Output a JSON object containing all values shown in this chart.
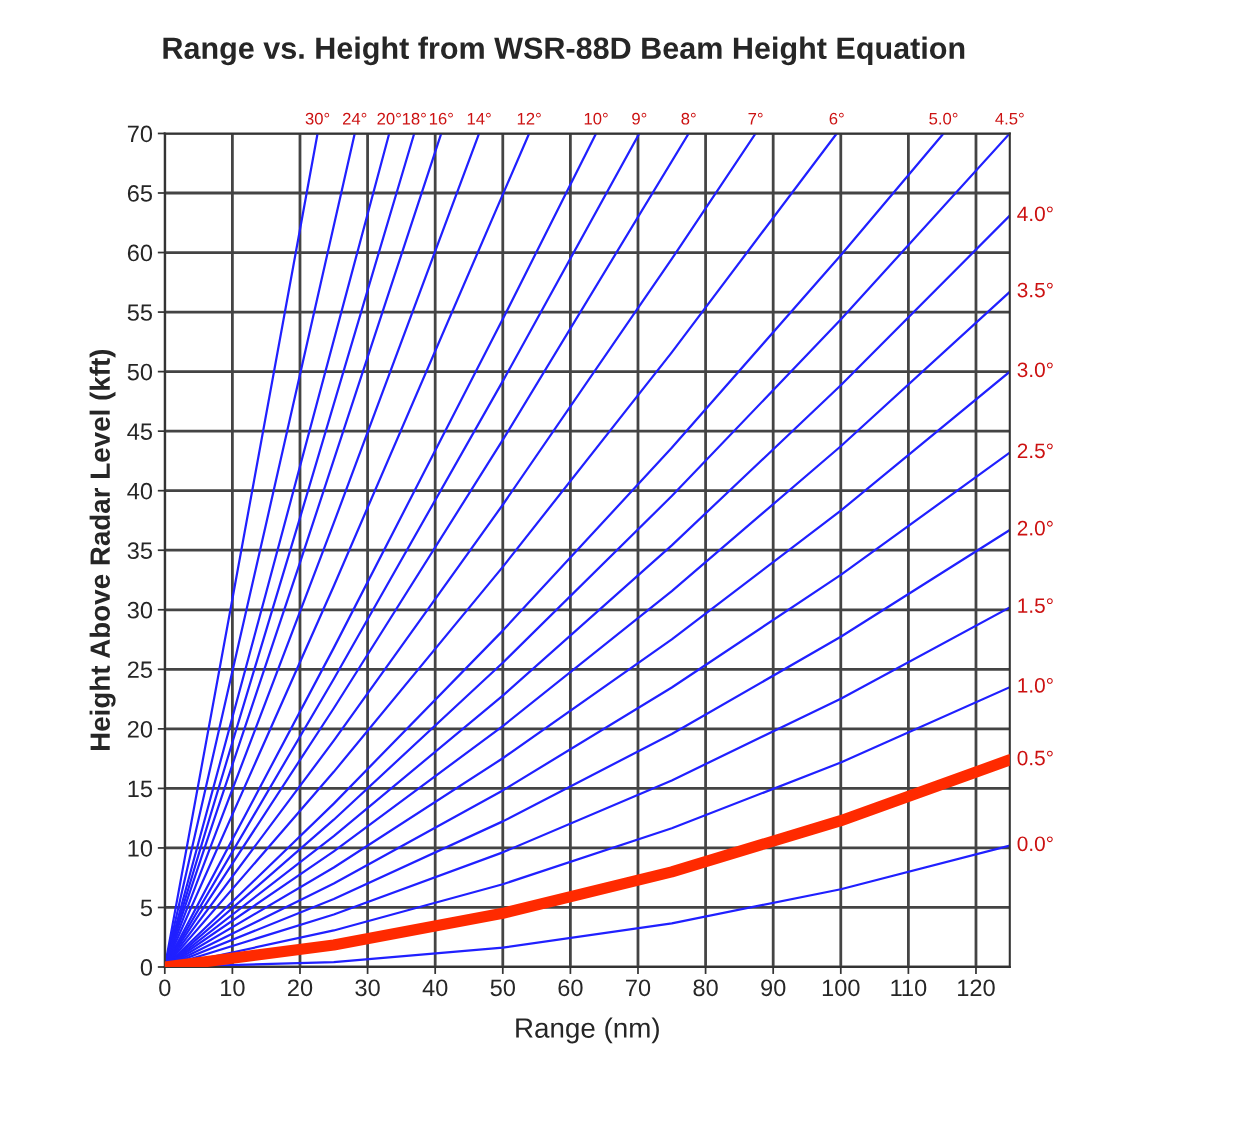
{
  "chart_data": {
    "type": "line",
    "title": "Range vs. Height from WSR-88D Beam Height Equation",
    "xlabel": "Range (nm)",
    "ylabel": "Height Above Radar Level (kft)",
    "xlim": [
      0,
      125
    ],
    "ylim": [
      0,
      70
    ],
    "xticks": [
      0,
      10,
      20,
      30,
      40,
      50,
      60,
      70,
      80,
      90,
      100,
      110,
      120
    ],
    "yticks": [
      0,
      5,
      10,
      15,
      20,
      25,
      30,
      35,
      40,
      45,
      50,
      55,
      60,
      65,
      70
    ],
    "grid": true,
    "series": [
      {
        "name": "30°",
        "color": "#2020ff",
        "x": [
          0,
          10,
          22.6
        ],
        "values": [
          0,
          30.9,
          70
        ]
      },
      {
        "name": "24°",
        "color": "#2020ff",
        "x": [
          0,
          15,
          28.1
        ],
        "values": [
          0,
          37.25,
          70
        ]
      },
      {
        "name": "20°",
        "color": "#2020ff",
        "x": [
          0,
          15,
          33.2
        ],
        "values": [
          0,
          31.45,
          70
        ]
      },
      {
        "name": "18°",
        "color": "#2020ff",
        "x": [
          0,
          20,
          36.9
        ],
        "values": [
          0,
          37.72,
          70
        ]
      },
      {
        "name": "16°",
        "color": "#2020ff",
        "x": [
          0,
          20,
          40.9
        ],
        "values": [
          0,
          33.96,
          70
        ]
      },
      {
        "name": "14°",
        "color": "#2020ff",
        "x": [
          0,
          25,
          46.5
        ],
        "values": [
          0,
          37.29,
          70
        ]
      },
      {
        "name": "12°",
        "color": "#2020ff",
        "x": [
          0,
          25,
          53.9
        ],
        "values": [
          0,
          32.0,
          70
        ]
      },
      {
        "name": "10°",
        "color": "#2020ff",
        "x": [
          0,
          25,
          50,
          63.8
        ],
        "values": [
          0,
          26.8,
          54.41,
          70
        ]
      },
      {
        "name": "9°",
        "color": "#2020ff",
        "x": [
          0,
          25,
          50,
          70.2
        ],
        "values": [
          0,
          24.19,
          49.2,
          70
        ]
      },
      {
        "name": "8°",
        "color": "#2020ff",
        "x": [
          0,
          25,
          50,
          77.5
        ],
        "values": [
          0,
          21.73,
          44.26,
          70
        ]
      },
      {
        "name": "7°",
        "color": "#2020ff",
        "x": [
          0,
          25,
          50,
          75,
          87.4
        ],
        "values": [
          0,
          19.01,
          38.82,
          59.46,
          70
        ]
      },
      {
        "name": "6°",
        "color": "#2020ff",
        "x": [
          0,
          25,
          50,
          75,
          99.4
        ],
        "values": [
          0,
          16.39,
          33.6,
          51.62,
          70
        ]
      },
      {
        "name": "5.0°",
        "color": "#2020ff",
        "x": [
          0,
          25,
          50,
          75,
          100,
          115.2
        ],
        "values": [
          0,
          13.72,
          28.25,
          43.6,
          59.77,
          70
        ]
      },
      {
        "name": "4.5°",
        "color": "#2020ff",
        "x": [
          0,
          25,
          50,
          75,
          100,
          125
        ],
        "values": [
          0,
          12.37,
          25.55,
          39.55,
          54.37,
          70
        ]
      },
      {
        "name": "4.0°",
        "color": "#2020ff",
        "x": [
          0,
          25,
          50,
          75,
          100,
          125
        ],
        "values": [
          0,
          10.99,
          22.79,
          35.41,
          48.85,
          63.1
        ]
      },
      {
        "name": "3.5°",
        "color": "#2020ff",
        "x": [
          0,
          25,
          50,
          75,
          100,
          125
        ],
        "values": [
          0,
          9.71,
          20.23,
          31.57,
          43.73,
          56.7
        ]
      },
      {
        "name": "3.0°",
        "color": "#2020ff",
        "x": [
          0,
          25,
          50,
          75,
          100,
          125
        ],
        "values": [
          0,
          8.36,
          17.53,
          27.52,
          38.33,
          50
        ]
      },
      {
        "name": "2.5°",
        "color": "#2020ff",
        "x": [
          0,
          25,
          50,
          75,
          100,
          125
        ],
        "values": [
          0,
          7.01,
          14.83,
          23.47,
          32.93,
          43.2
        ]
      },
      {
        "name": "2.0°",
        "color": "#2020ff",
        "x": [
          0,
          25,
          50,
          75,
          100,
          125
        ],
        "values": [
          0,
          5.71,
          12.23,
          19.57,
          27.73,
          36.7
        ]
      },
      {
        "name": "1.5°",
        "color": "#2020ff",
        "x": [
          0,
          25,
          50,
          75,
          100,
          125
        ],
        "values": [
          0,
          4.41,
          9.63,
          15.67,
          22.53,
          30.2
        ]
      },
      {
        "name": "1.0°",
        "color": "#2020ff",
        "x": [
          0,
          25,
          50,
          75,
          100,
          125
        ],
        "values": [
          0,
          3.07,
          6.95,
          11.65,
          17.17,
          23.5
        ]
      },
      {
        "name": "0.5°",
        "color": "#ff2a00",
        "x": [
          0,
          25,
          50,
          75,
          100,
          125
        ],
        "values": [
          0,
          1.85,
          4.51,
          7.99,
          12.29,
          17.4
        ]
      },
      {
        "name": "0.0°",
        "color": "#2020ff",
        "x": [
          0,
          25,
          50,
          75,
          100,
          125
        ],
        "values": [
          0,
          0.41,
          1.63,
          3.67,
          6.53,
          10.2
        ]
      }
    ]
  }
}
